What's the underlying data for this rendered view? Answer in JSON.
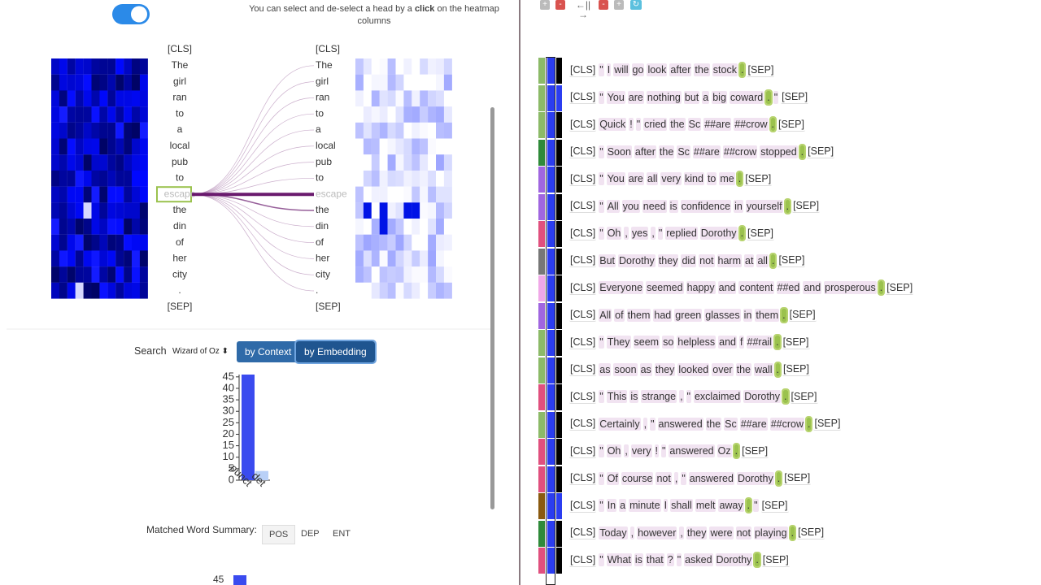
{
  "instruction": {
    "before": "You can select and de-select a head by a",
    "bold": "click",
    "after": "on the heatmap columns"
  },
  "tokens": [
    "[CLS]",
    "The",
    "girl",
    "ran",
    "to",
    "a",
    "local",
    "pub",
    "to",
    "escape",
    "the",
    "din",
    "of",
    "her",
    "city",
    ".",
    "[SEP]"
  ],
  "selected_token": 9,
  "search": {
    "label": "Search",
    "corpus": "Wizard of Oz",
    "buttons": [
      "by Context",
      "by Embedding"
    ]
  },
  "histogram": {
    "type": "bar",
    "categories": [
      "punct",
      "det"
    ],
    "values": [
      46,
      4
    ],
    "colors": [
      "#3a4bef",
      "#b9d0f7"
    ],
    "ylim": [
      0,
      46
    ],
    "yticks": [
      0,
      5,
      10,
      15,
      20,
      25,
      30,
      35,
      40,
      45
    ]
  },
  "summary": {
    "label": "Matched Word Summary:",
    "tabs": [
      "POS",
      "DEP",
      "ENT"
    ],
    "next_ytick": 45
  },
  "controls": [
    "+",
    "-",
    "←||→",
    "-",
    "+"
  ],
  "rows": [
    {
      "color": "#8cba68",
      "second_bar": "#000000",
      "tokens": [
        "[CLS]",
        "\"",
        "I",
        "will",
        "go",
        "look",
        "after",
        "the",
        "stock",
        ".",
        "[SEP]"
      ],
      "match": 9
    },
    {
      "color": "#8cba68",
      "second_bar": "#2b3df0",
      "tokens": [
        "[CLS]",
        "\"",
        "You",
        "are",
        "nothing",
        "but",
        "a",
        "big",
        "coward",
        ".",
        "\"",
        "[SEP]"
      ],
      "match": 9
    },
    {
      "color": "#8cba68",
      "second_bar": "#000000",
      "tokens": [
        "[CLS]",
        "Quick",
        "!",
        "\"",
        "cried",
        "the",
        "Sc",
        "##are",
        "##crow",
        ".",
        "[SEP]"
      ],
      "match": 9
    },
    {
      "color": "#2f8a3a",
      "second_bar": "#000000",
      "tokens": [
        "[CLS]",
        "\"",
        "Soon",
        "after",
        "the",
        "Sc",
        "##are",
        "##crow",
        "stopped",
        ".",
        "[SEP]"
      ],
      "match": 9
    },
    {
      "color": "#a066e0",
      "second_bar": "#000000",
      "tokens": [
        "[CLS]",
        "\"",
        "You",
        "are",
        "all",
        "very",
        "kind",
        "to",
        "me",
        ".",
        "[SEP]"
      ],
      "match": 9
    },
    {
      "color": "#a066e0",
      "second_bar": "#000000",
      "tokens": [
        "[CLS]",
        "\"",
        "All",
        "you",
        "need",
        "is",
        "confidence",
        "in",
        "yourself",
        ".",
        "[SEP]"
      ],
      "match": 9
    },
    {
      "color": "#e0507e",
      "second_bar": "#000000",
      "tokens": [
        "[CLS]",
        "\"",
        "Oh",
        ",",
        "yes",
        ",",
        "\"",
        "replied",
        "Dorothy",
        ".",
        "[SEP]"
      ],
      "match": 9
    },
    {
      "color": "#777777",
      "second_bar": "#000000",
      "tokens": [
        "[CLS]",
        "But",
        "Dorothy",
        "they",
        "did",
        "not",
        "harm",
        "at",
        "all",
        ".",
        "[SEP]"
      ],
      "match": 9
    },
    {
      "color": "#f0a8e8",
      "second_bar": "#000000",
      "tokens": [
        "[CLS]",
        "Everyone",
        "seemed",
        "happy",
        "and",
        "content",
        "##ed",
        "and",
        "prosperous",
        ".",
        "[SEP]"
      ],
      "match": 9
    },
    {
      "color": "#a066e0",
      "second_bar": "#000000",
      "tokens": [
        "[CLS]",
        "All",
        "of",
        "them",
        "had",
        "green",
        "glasses",
        "in",
        "them",
        ".",
        "[SEP]"
      ],
      "match": 9
    },
    {
      "color": "#8cba68",
      "second_bar": "#000000",
      "tokens": [
        "[CLS]",
        "\"",
        "They",
        "seem",
        "so",
        "helpless",
        "and",
        "f",
        "##rail",
        ".",
        "[SEP]"
      ],
      "match": 9
    },
    {
      "color": "#8cba68",
      "second_bar": "#000000",
      "tokens": [
        "[CLS]",
        "as",
        "soon",
        "as",
        "they",
        "looked",
        "over",
        "the",
        "wall",
        ".",
        "[SEP]"
      ],
      "match": 9
    },
    {
      "color": "#e0507e",
      "second_bar": "#000000",
      "tokens": [
        "[CLS]",
        "\"",
        "This",
        "is",
        "strange",
        ",",
        "\"",
        "exclaimed",
        "Dorothy",
        ".",
        "[SEP]"
      ],
      "match": 9
    },
    {
      "color": "#8cba68",
      "second_bar": "#000000",
      "tokens": [
        "[CLS]",
        "Certainly",
        ",",
        "\"",
        "answered",
        "the",
        "Sc",
        "##are",
        "##crow",
        ".",
        "[SEP]"
      ],
      "match": 9
    },
    {
      "color": "#e0507e",
      "second_bar": "#000000",
      "tokens": [
        "[CLS]",
        "\"",
        "Oh",
        ",",
        "very",
        "!",
        "\"",
        "answered",
        "Oz",
        ".",
        "[SEP]"
      ],
      "match": 9
    },
    {
      "color": "#e0507e",
      "second_bar": "#000000",
      "tokens": [
        "[CLS]",
        "\"",
        "Of",
        "course",
        "not",
        ",",
        "\"",
        "answered",
        "Dorothy",
        ".",
        "[SEP]"
      ],
      "match": 9
    },
    {
      "color": "#8a5a10",
      "second_bar": "#2b3df0",
      "tokens": [
        "[CLS]",
        "\"",
        "In",
        "a",
        "minute",
        "I",
        "shall",
        "melt",
        "away",
        ".",
        "\"",
        "[SEP]"
      ],
      "match": 9
    },
    {
      "color": "#2f8a3a",
      "second_bar": "#000000",
      "tokens": [
        "[CLS]",
        "Today",
        ",",
        "however",
        ",",
        "they",
        "were",
        "not",
        "playing",
        ".",
        "[SEP]"
      ],
      "match": 9
    },
    {
      "color": "#e0507e",
      "second_bar": "#000000",
      "tokens": [
        "[CLS]",
        "\"",
        "What",
        "is",
        "that",
        "?",
        "\"",
        "asked",
        "Dorothy",
        ".",
        "[SEP]"
      ],
      "match": 9
    }
  ]
}
